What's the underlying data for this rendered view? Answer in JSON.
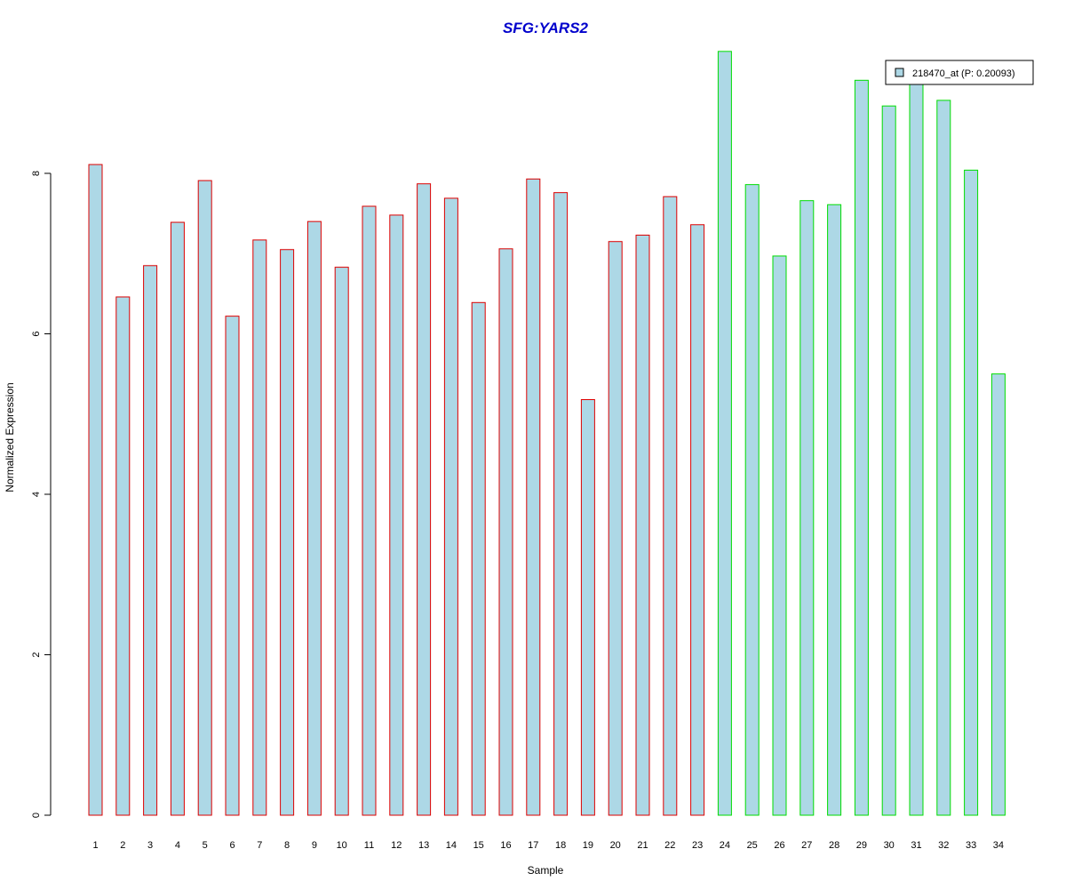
{
  "chart_data": {
    "type": "bar",
    "title": "SFG:YARS2",
    "xlabel": "Sample",
    "ylabel": "Normalized Expression",
    "ylim": [
      0,
      9.6
    ],
    "yticks": [
      0,
      2,
      4,
      6,
      8
    ],
    "categories": [
      "1",
      "2",
      "3",
      "4",
      "5",
      "6",
      "7",
      "8",
      "9",
      "10",
      "11",
      "12",
      "13",
      "14",
      "15",
      "16",
      "17",
      "18",
      "19",
      "20",
      "21",
      "22",
      "23",
      "24",
      "25",
      "26",
      "27",
      "28",
      "29",
      "30",
      "31",
      "32",
      "33",
      "34"
    ],
    "series": [
      {
        "name": "218470_at (P: 0.20093)",
        "values": [
          8.11,
          6.46,
          6.85,
          7.39,
          7.91,
          6.22,
          7.17,
          7.05,
          7.4,
          6.83,
          7.59,
          7.48,
          7.87,
          7.69,
          6.39,
          7.06,
          7.93,
          7.76,
          5.18,
          7.15,
          7.23,
          7.71,
          7.36,
          9.52,
          7.86,
          6.97,
          7.66,
          7.61,
          9.16,
          8.84,
          9.12,
          8.91,
          8.04,
          5.5
        ],
        "groups": [
          "g1",
          "g1",
          "g1",
          "g1",
          "g1",
          "g1",
          "g1",
          "g1",
          "g1",
          "g1",
          "g1",
          "g1",
          "g1",
          "g1",
          "g1",
          "g1",
          "g1",
          "g1",
          "g1",
          "g1",
          "g1",
          "g1",
          "g1",
          "g2",
          "g2",
          "g2",
          "g2",
          "g2",
          "g2",
          "g2",
          "g2",
          "g2",
          "g2",
          "g2"
        ]
      }
    ],
    "colors": {
      "bar_fill": "#add8e6",
      "group_borders": {
        "g1": "#dd0000",
        "g2": "#00dd00"
      },
      "title": "#0000cc",
      "legend_swatch_fill": "#add8e6",
      "legend_swatch_border": "#000000"
    },
    "grid": false,
    "legend_position": "top-right"
  }
}
